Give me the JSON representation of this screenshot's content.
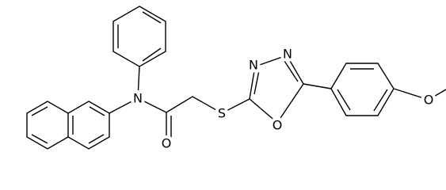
{
  "atoms": {
    "labels": [
      "N",
      "O",
      "S",
      "N",
      "N",
      "O",
      "O"
    ]
  }
}
